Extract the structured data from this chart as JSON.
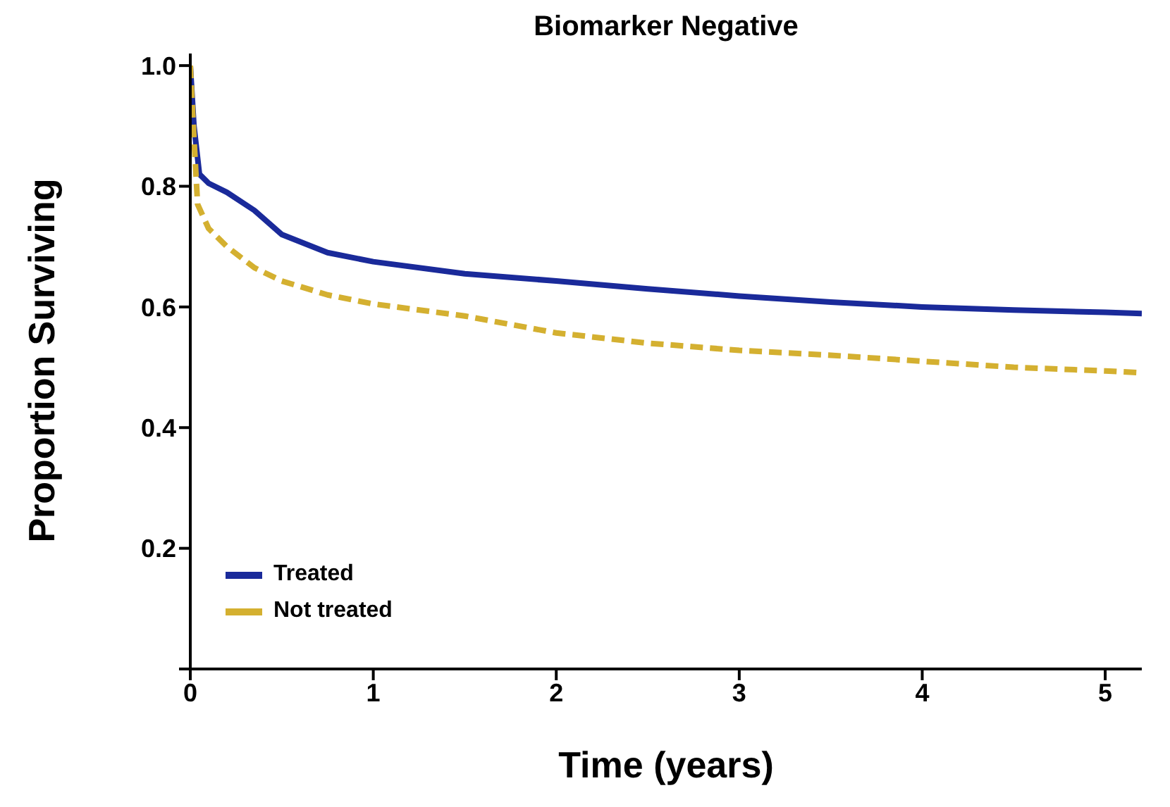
{
  "chart_data": {
    "type": "line",
    "title": "Biomarker Negative",
    "xlabel": "Time (years)",
    "ylabel": "Proportion Surviving",
    "xlim": [
      0,
      5.2
    ],
    "xticks": [
      0,
      1,
      2,
      3,
      4,
      5
    ],
    "ylim": [
      0,
      1.02
    ],
    "yticks": [
      {
        "value": 0,
        "label": null
      },
      0.2,
      0.4,
      0.6,
      0.8,
      "1.0"
    ],
    "legend": "bottom left",
    "grid": false,
    "series": [
      {
        "name": "Treated",
        "color": "#1a2a9a",
        "line_style": "solid",
        "x": [
          0,
          0.02,
          0.05,
          0.1,
          0.2,
          0.35,
          0.5,
          0.75,
          1,
          1.5,
          2,
          2.5,
          3,
          3.5,
          4,
          4.5,
          5,
          5.2
        ],
        "values": [
          1.0,
          0.9,
          0.82,
          0.805,
          0.79,
          0.76,
          0.72,
          0.69,
          0.675,
          0.655,
          0.643,
          0.63,
          0.618,
          0.608,
          0.6,
          0.595,
          0.591,
          0.589
        ]
      },
      {
        "name": "Not treated",
        "color": "#d4b030",
        "line_style": "dashed",
        "x": [
          0,
          0.02,
          0.04,
          0.1,
          0.2,
          0.35,
          0.5,
          0.75,
          1,
          1.5,
          2,
          2.5,
          3,
          3.5,
          4,
          4.5,
          5,
          5.2
        ],
        "values": [
          1.0,
          0.88,
          0.77,
          0.73,
          0.7,
          0.665,
          0.643,
          0.62,
          0.605,
          0.585,
          0.557,
          0.54,
          0.528,
          0.52,
          0.51,
          0.5,
          0.494,
          0.491
        ]
      }
    ]
  }
}
